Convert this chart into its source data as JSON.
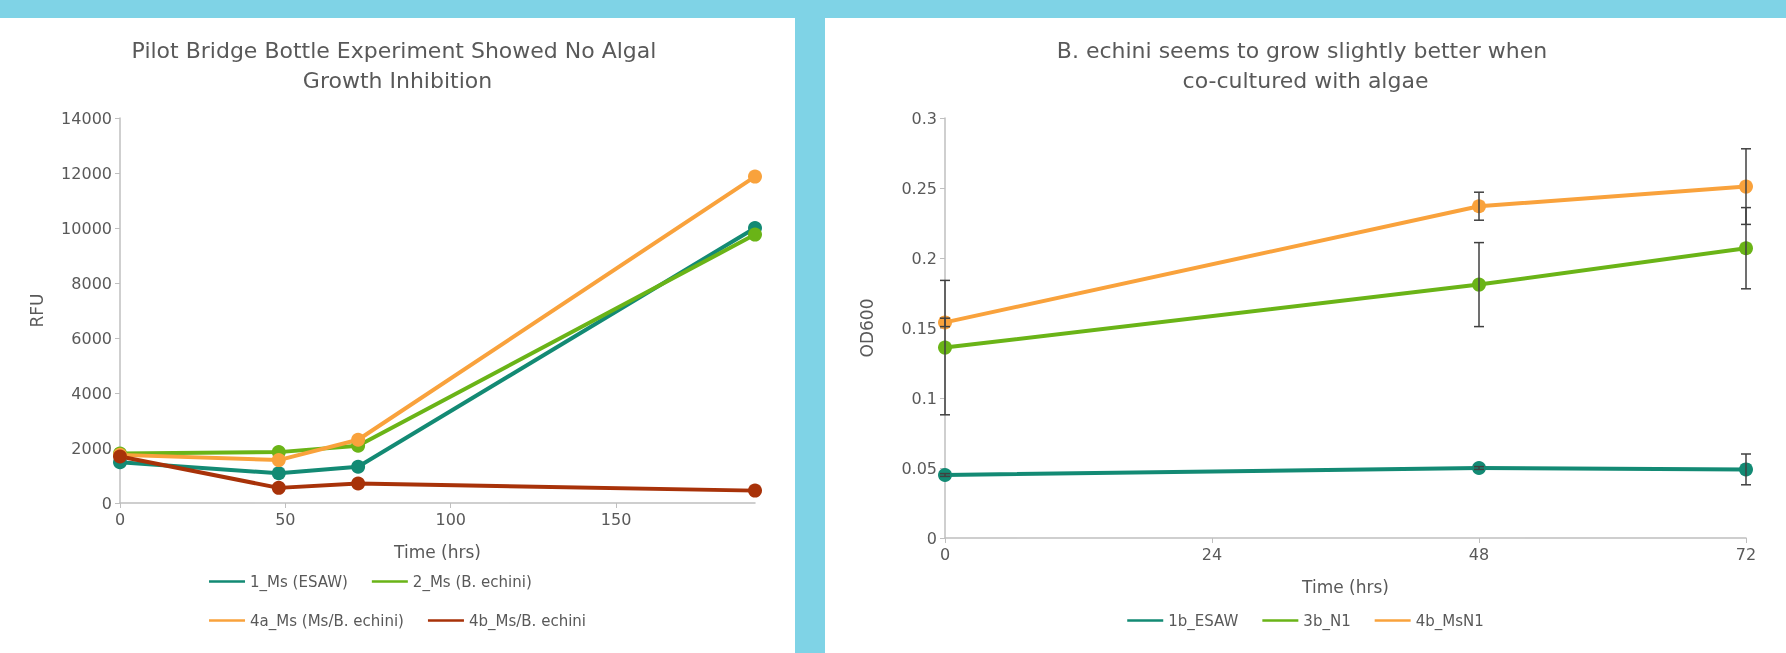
{
  "chart_data": [
    {
      "type": "line",
      "title": "Pilot Bridge Bottle Experiment Showed No Algal Growth Inhibition",
      "xlabel": "Time (hrs)",
      "ylabel": "RFU",
      "xlim": [
        0,
        192
      ],
      "xticks": [
        0,
        50,
        100,
        150
      ],
      "ylim": [
        0,
        14000
      ],
      "yticks": [
        0,
        2000,
        4000,
        6000,
        8000,
        10000,
        12000,
        14000
      ],
      "grid": false,
      "legend": "bottom",
      "marker": "circle",
      "line_style": "solid",
      "series": [
        {
          "name": "1_Ms (ESAW)",
          "color": "#138a74",
          "x": [
            0,
            48,
            72,
            192
          ],
          "values": [
            1480,
            1080,
            1320,
            10000
          ]
        },
        {
          "name": "2_Ms (B. echini)",
          "color": "#6ab417",
          "x": [
            0,
            48,
            72,
            192
          ],
          "values": [
            1800,
            1850,
            2080,
            9760
          ]
        },
        {
          "name": "4a_Ms (Ms/B. echini)",
          "color": "#f9a23c",
          "x": [
            0,
            48,
            72,
            192
          ],
          "values": [
            1750,
            1560,
            2300,
            11870
          ]
        },
        {
          "name": "4b_Ms/B. echini",
          "color": "#a83209",
          "x": [
            0,
            48,
            72,
            192
          ],
          "values": [
            1690,
            550,
            710,
            450
          ]
        }
      ]
    },
    {
      "type": "line",
      "title": "B. echini seems to grow slightly better when co-cultured with algae",
      "xlabel": "Time (hrs)",
      "ylabel": "OD600",
      "xlim": [
        0,
        72
      ],
      "xticks": [
        0,
        24,
        48,
        72
      ],
      "ylim": [
        0,
        0.3
      ],
      "yticks": [
        0,
        0.05,
        0.1,
        0.15,
        0.2,
        0.25,
        0.3
      ],
      "grid": false,
      "legend": "bottom",
      "marker": "circle",
      "line_style": "solid",
      "series": [
        {
          "name": "1b_ESAW",
          "color": "#138a74",
          "x": [
            0,
            48,
            72
          ],
          "values": [
            0.045,
            0.05,
            0.049
          ],
          "errors": [
            0.001,
            0.001,
            0.011
          ]
        },
        {
          "name": "3b_N1",
          "color": "#6ab417",
          "x": [
            0,
            48,
            72
          ],
          "values": [
            0.136,
            0.181,
            0.207
          ],
          "errors": [
            0.048,
            0.03,
            0.029
          ]
        },
        {
          "name": "4b_MsN1",
          "color": "#f9a23c",
          "x": [
            0,
            48,
            72
          ],
          "values": [
            0.154,
            0.237,
            0.251
          ],
          "errors": [
            0.003,
            0.01,
            0.027
          ]
        }
      ]
    }
  ]
}
